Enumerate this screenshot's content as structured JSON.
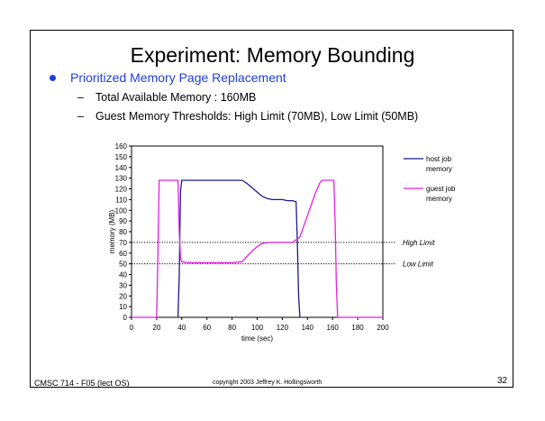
{
  "slide": {
    "title": "Experiment: Memory Bounding",
    "bullet": "Prioritized Memory Page Replacement",
    "subbullets": [
      "Total Available Memory : 160MB",
      "Guest Memory Thresholds: High Limit (70MB), Low Limit (50MB)"
    ],
    "footer_left": "CMSC 714 - F05 (lect OS)",
    "footer_center": "copyright 2003 Jeffrey K. Hollingsworth",
    "page_number": "32"
  },
  "chart_data": {
    "type": "line",
    "title": "",
    "xlabel": "time (sec)",
    "ylabel": "memory (MB)",
    "xlim": [
      0,
      200
    ],
    "ylim": [
      0,
      160
    ],
    "xticks": [
      0,
      20,
      40,
      60,
      80,
      100,
      120,
      140,
      160,
      180,
      200
    ],
    "yticks": [
      0,
      10,
      20,
      30,
      40,
      50,
      60,
      70,
      80,
      90,
      100,
      110,
      120,
      130,
      140,
      150,
      160
    ],
    "grid": false,
    "legend_position": "right",
    "series": [
      {
        "name": "host job memory",
        "color": "#1a1a8c",
        "points": [
          [
            37,
            0
          ],
          [
            38,
            40
          ],
          [
            39,
            118
          ],
          [
            40,
            128
          ],
          [
            44,
            128
          ],
          [
            60,
            128
          ],
          [
            80,
            128
          ],
          [
            88,
            128
          ],
          [
            92,
            125
          ],
          [
            96,
            121
          ],
          [
            100,
            117
          ],
          [
            104,
            113
          ],
          [
            108,
            111
          ],
          [
            112,
            110
          ],
          [
            116,
            110
          ],
          [
            120,
            110
          ],
          [
            124,
            109
          ],
          [
            128,
            109
          ],
          [
            131,
            108
          ],
          [
            132,
            70
          ],
          [
            133,
            20
          ],
          [
            134,
            0
          ]
        ]
      },
      {
        "name": "guest job memory",
        "color": "#e020e0",
        "points": [
          [
            0,
            0
          ],
          [
            20,
            0
          ],
          [
            21,
            60
          ],
          [
            22,
            128
          ],
          [
            37,
            128
          ],
          [
            38,
            80
          ],
          [
            39,
            55
          ],
          [
            40,
            52
          ],
          [
            45,
            51
          ],
          [
            60,
            51
          ],
          [
            80,
            51
          ],
          [
            88,
            52
          ],
          [
            92,
            57
          ],
          [
            96,
            62
          ],
          [
            100,
            66
          ],
          [
            104,
            69
          ],
          [
            110,
            70
          ],
          [
            120,
            70
          ],
          [
            128,
            70
          ],
          [
            134,
            75
          ],
          [
            140,
            95
          ],
          [
            146,
            115
          ],
          [
            150,
            126
          ],
          [
            152,
            128
          ],
          [
            161,
            128
          ],
          [
            162,
            90
          ],
          [
            163,
            30
          ],
          [
            164,
            0
          ],
          [
            180,
            0
          ],
          [
            200,
            0
          ]
        ]
      }
    ],
    "reference_lines": [
      {
        "label": "High Limit",
        "y": 70
      },
      {
        "label": "Low Limit",
        "y": 50
      }
    ]
  }
}
